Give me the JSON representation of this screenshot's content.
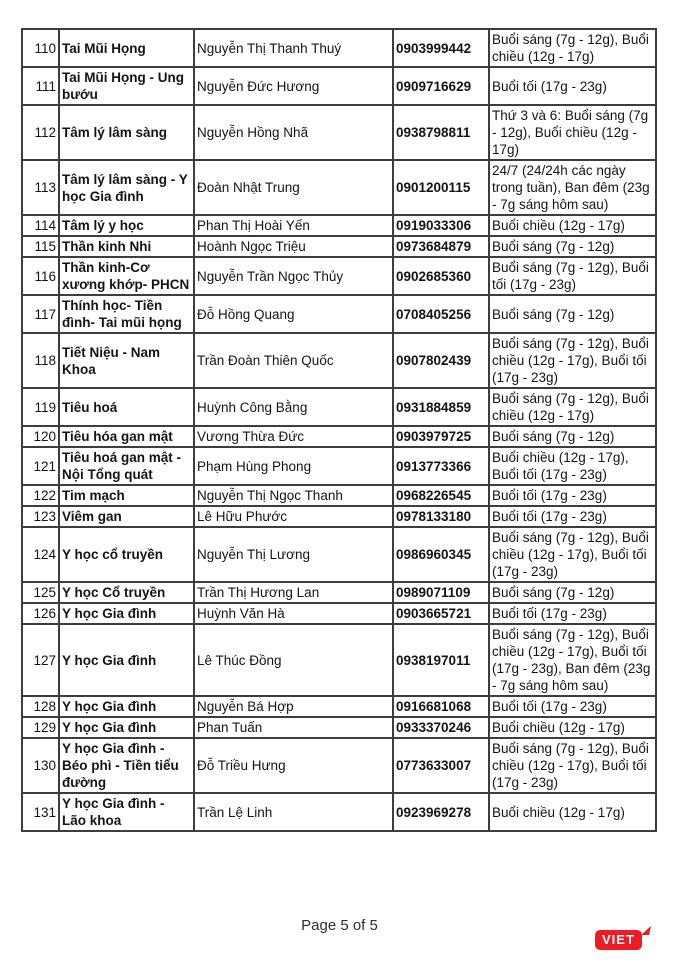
{
  "page": {
    "footer": {
      "page_label": "Page 5 of 5"
    },
    "logo": {
      "text": "VIET",
      "color": "#ed1c24"
    }
  },
  "colors": {
    "table_border": "#3d3d3d",
    "text": "#141414",
    "logo_red": "#ed1c24"
  },
  "table": {
    "columns": [
      "no",
      "specialty",
      "doctor",
      "phone",
      "schedule"
    ],
    "rows": [
      {
        "no": "110",
        "specialty": "Tai Mũi Họng",
        "doctor": "Nguyễn Thị Thanh Thuý",
        "phone": "0903999442",
        "schedule": "Buổi sáng (7g - 12g), Buổi chiều (12g - 17g)"
      },
      {
        "no": "111",
        "specialty": "Tai Mũi Họng - Ung bướu",
        "doctor": "Nguyễn Đức Hương",
        "phone": "0909716629",
        "schedule": "Buổi tối (17g - 23g)"
      },
      {
        "no": "112",
        "specialty": "Tâm lý lâm sàng",
        "doctor": "Nguyễn Hồng Nhã",
        "phone": "0938798811",
        "schedule": "Thứ 3 và 6: Buổi sáng (7g - 12g), Buổi chiều (12g - 17g)"
      },
      {
        "no": "113",
        "specialty": "Tâm lý lâm sàng - Y học Gia đình",
        "doctor": "Đoàn Nhật Trung",
        "phone": "0901200115",
        "schedule": "24/7 (24/24h các ngày trong tuần), Ban đêm (23g - 7g sáng hôm sau)"
      },
      {
        "no": "114",
        "specialty": "Tâm lý y học",
        "doctor": "Phan Thị Hoài Yến",
        "phone": "0919033306",
        "schedule": "Buổi chiều (12g - 17g)"
      },
      {
        "no": "115",
        "specialty": "Thần kinh Nhi",
        "doctor": "Hoành Ngọc Triệu",
        "phone": "0973684879",
        "schedule": "Buổi sáng (7g - 12g)"
      },
      {
        "no": "116",
        "specialty": "Thần kinh-Cơ xương khớp- PHCN",
        "doctor": "Nguyễn Trần Ngọc Thủy",
        "phone": "0902685360",
        "schedule": "Buổi sáng (7g - 12g), Buổi tối (17g - 23g)"
      },
      {
        "no": "117",
        "specialty": "Thính học- Tiền đình- Tai mũi họng",
        "doctor": "Đỗ Hồng Quang",
        "phone": "0708405256",
        "schedule": "Buổi sáng (7g - 12g)"
      },
      {
        "no": "118",
        "specialty": "Tiết Niệu - Nam Khoa",
        "doctor": "Trần Đoàn Thiên Quốc",
        "phone": "0907802439",
        "schedule": "Buổi sáng (7g - 12g), Buổi chiều (12g - 17g), Buổi tối (17g - 23g)"
      },
      {
        "no": "119",
        "specialty": "Tiêu hoá",
        "doctor": "Huỳnh Công Bằng",
        "phone": "0931884859",
        "schedule": "Buổi sáng (7g - 12g), Buổi chiều (12g - 17g)"
      },
      {
        "no": "120",
        "specialty": "Tiêu hóa gan mật",
        "doctor": "Vương Thừa Đức",
        "phone": "0903979725",
        "schedule": "Buổi sáng (7g - 12g)"
      },
      {
        "no": "121",
        "specialty": "Tiêu hoá gan mật - Nội Tổng quát",
        "doctor": "Phạm Hùng Phong",
        "phone": "0913773366",
        "schedule": "Buổi chiều (12g - 17g), Buổi tối (17g - 23g)"
      },
      {
        "no": "122",
        "specialty": "Tim mạch",
        "doctor": "Nguyễn Thị Ngọc Thanh",
        "phone": "0968226545",
        "schedule": "Buổi tối (17g - 23g)"
      },
      {
        "no": "123",
        "specialty": "Viêm gan",
        "doctor": "Lê Hữu Phước",
        "phone": "0978133180",
        "schedule": "Buổi tối (17g - 23g)"
      },
      {
        "no": "124",
        "specialty": "Y học cổ truyền",
        "doctor": "Nguyễn Thị Lương",
        "phone": "0986960345",
        "schedule": "Buổi sáng (7g - 12g), Buổi chiều (12g - 17g), Buổi tối (17g - 23g)"
      },
      {
        "no": "125",
        "specialty": "Y học Cổ truyền",
        "doctor": "Trần Thị Hương Lan",
        "phone": "0989071109",
        "schedule": "Buổi sáng (7g - 12g)"
      },
      {
        "no": "126",
        "specialty": "Y học Gia đình",
        "doctor": "Huỳnh Văn Hà",
        "phone": "0903665721",
        "schedule": "Buổi tối (17g - 23g)"
      },
      {
        "no": "127",
        "specialty": "Y học Gia đình",
        "doctor": "Lê Thúc Đồng",
        "phone": "0938197011",
        "schedule": "Buổi sáng (7g - 12g), Buổi chiều (12g - 17g), Buổi tối (17g - 23g), Ban đêm (23g - 7g sáng hôm sau)"
      },
      {
        "no": "128",
        "specialty": "Y học Gia đình",
        "doctor": "Nguyễn Bá Hợp",
        "phone": "0916681068",
        "schedule": "Buổi tối (17g - 23g)"
      },
      {
        "no": "129",
        "specialty": "Y học Gia đình",
        "doctor": "Phan Tuấn",
        "phone": "0933370246",
        "schedule": "Buổi chiều (12g - 17g)"
      },
      {
        "no": "130",
        "specialty": "Y học Gia đình - Béo phì - Tiền tiểu đường",
        "doctor": "Đỗ Triều Hưng",
        "phone": "0773633007",
        "schedule": "Buổi sáng (7g - 12g), Buổi chiều (12g - 17g), Buổi tối (17g - 23g)"
      },
      {
        "no": "131",
        "specialty": "Y học Gia đình - Lão khoa",
        "doctor": "Trần Lệ Linh",
        "phone": "0923969278",
        "schedule": "Buổi chiều (12g - 17g)"
      }
    ]
  }
}
